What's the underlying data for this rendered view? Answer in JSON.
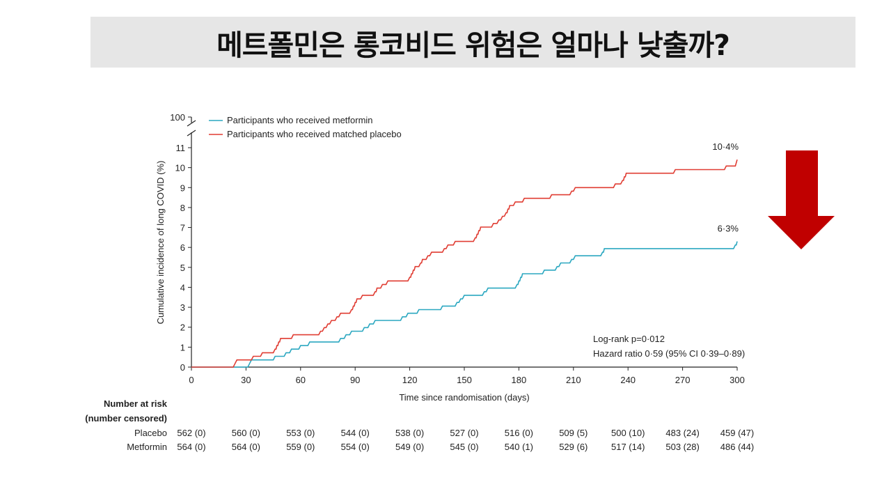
{
  "title": "메트폴민은 롱코비드 위험은 얼마나 낮출까?",
  "colors": {
    "metformin": "#2aa7c0",
    "placebo": "#e03c32",
    "arrow": "#c00000",
    "title_bg": "#e6e6e6"
  },
  "icons": {
    "arrow": "down-arrow-icon"
  },
  "chart_data": {
    "type": "line",
    "xlabel": "Time since randomisation (days)",
    "ylabel": "Cumulative incidence of long COVID (%)",
    "xlim": [
      0,
      300
    ],
    "ylim": [
      0,
      11
    ],
    "y_top_tick": "100",
    "x_ticks": [
      0,
      30,
      60,
      90,
      120,
      150,
      180,
      210,
      240,
      270,
      300
    ],
    "y_ticks": [
      0,
      1,
      2,
      3,
      4,
      5,
      6,
      7,
      8,
      9,
      10,
      11
    ],
    "grid": false,
    "legend": "top-left",
    "series": [
      {
        "name": "Participants who received metformin",
        "end_label": "6·3%",
        "steps": [
          [
            0,
            0
          ],
          [
            31,
            0
          ],
          [
            32,
            0.18
          ],
          [
            33,
            0.36
          ],
          [
            45,
            0.36
          ],
          [
            46,
            0.54
          ],
          [
            51,
            0.54
          ],
          [
            52,
            0.72
          ],
          [
            54,
            0.72
          ],
          [
            55,
            0.9
          ],
          [
            59,
            0.9
          ],
          [
            60,
            1.08
          ],
          [
            64,
            1.08
          ],
          [
            65,
            1.26
          ],
          [
            81,
            1.26
          ],
          [
            82,
            1.44
          ],
          [
            84,
            1.44
          ],
          [
            85,
            1.62
          ],
          [
            87,
            1.62
          ],
          [
            88,
            1.8
          ],
          [
            94,
            1.8
          ],
          [
            95,
            1.98
          ],
          [
            97,
            1.98
          ],
          [
            98,
            2.16
          ],
          [
            100,
            2.16
          ],
          [
            101,
            2.34
          ],
          [
            115,
            2.34
          ],
          [
            116,
            2.52
          ],
          [
            118,
            2.52
          ],
          [
            119,
            2.7
          ],
          [
            124,
            2.7
          ],
          [
            125,
            2.88
          ],
          [
            137,
            2.88
          ],
          [
            138,
            3.06
          ],
          [
            145,
            3.06
          ],
          [
            146,
            3.24
          ],
          [
            147,
            3.24
          ],
          [
            148,
            3.42
          ],
          [
            149,
            3.42
          ],
          [
            150,
            3.6
          ],
          [
            160,
            3.6
          ],
          [
            161,
            3.78
          ],
          [
            162,
            3.78
          ],
          [
            163,
            3.96
          ],
          [
            178,
            3.96
          ],
          [
            179,
            4.14
          ],
          [
            179.5,
            4.14
          ],
          [
            180,
            4.32
          ],
          [
            180.5,
            4.32
          ],
          [
            181,
            4.5
          ],
          [
            181.5,
            4.5
          ],
          [
            182,
            4.68
          ],
          [
            193,
            4.68
          ],
          [
            194,
            4.86
          ],
          [
            200,
            4.86
          ],
          [
            201,
            5.04
          ],
          [
            202,
            5.04
          ],
          [
            203,
            5.22
          ],
          [
            208,
            5.22
          ],
          [
            209,
            5.4
          ],
          [
            210,
            5.4
          ],
          [
            211,
            5.58
          ],
          [
            225,
            5.58
          ],
          [
            226,
            5.76
          ],
          [
            226.5,
            5.76
          ],
          [
            227,
            5.94
          ],
          [
            298,
            5.94
          ],
          [
            299,
            6.12
          ],
          [
            299.5,
            6.12
          ],
          [
            300,
            6.3
          ]
        ]
      },
      {
        "name": "Participants who received matched placebo",
        "end_label": "10·4%",
        "steps": [
          [
            0,
            0
          ],
          [
            23,
            0
          ],
          [
            24,
            0.18
          ],
          [
            25,
            0.36
          ],
          [
            33,
            0.36
          ],
          [
            34,
            0.54
          ],
          [
            38,
            0.54
          ],
          [
            39,
            0.72
          ],
          [
            45,
            0.72
          ],
          [
            46,
            0.9
          ],
          [
            46.5,
            0.9
          ],
          [
            47,
            1.08
          ],
          [
            47.5,
            1.08
          ],
          [
            48,
            1.26
          ],
          [
            48.5,
            1.26
          ],
          [
            49,
            1.44
          ],
          [
            55,
            1.44
          ],
          [
            56,
            1.62
          ],
          [
            70,
            1.62
          ],
          [
            71,
            1.8
          ],
          [
            72,
            1.8
          ],
          [
            73,
            1.98
          ],
          [
            74,
            1.98
          ],
          [
            75,
            2.16
          ],
          [
            76,
            2.16
          ],
          [
            77,
            2.34
          ],
          [
            79,
            2.34
          ],
          [
            80,
            2.52
          ],
          [
            81,
            2.52
          ],
          [
            82,
            2.7
          ],
          [
            87,
            2.7
          ],
          [
            88,
            2.88
          ],
          [
            88.5,
            2.88
          ],
          [
            89,
            3.06
          ],
          [
            89.5,
            3.06
          ],
          [
            90,
            3.24
          ],
          [
            90.5,
            3.24
          ],
          [
            91,
            3.42
          ],
          [
            93,
            3.42
          ],
          [
            94,
            3.6
          ],
          [
            100,
            3.6
          ],
          [
            101,
            3.78
          ],
          [
            101.5,
            3.78
          ],
          [
            102,
            3.96
          ],
          [
            104,
            3.96
          ],
          [
            105,
            4.14
          ],
          [
            107,
            4.14
          ],
          [
            108,
            4.32
          ],
          [
            119,
            4.32
          ],
          [
            120,
            4.5
          ],
          [
            120.5,
            4.5
          ],
          [
            121,
            4.68
          ],
          [
            121.5,
            4.68
          ],
          [
            122,
            4.86
          ],
          [
            122.5,
            4.86
          ],
          [
            123,
            5.04
          ],
          [
            125,
            5.04
          ],
          [
            126,
            5.22
          ],
          [
            126.5,
            5.22
          ],
          [
            127,
            5.4
          ],
          [
            129,
            5.4
          ],
          [
            130,
            5.58
          ],
          [
            131,
            5.58
          ],
          [
            132,
            5.76
          ],
          [
            138,
            5.76
          ],
          [
            139,
            5.94
          ],
          [
            140,
            5.94
          ],
          [
            141,
            6.12
          ],
          [
            144,
            6.12
          ],
          [
            145,
            6.3
          ],
          [
            155,
            6.3
          ],
          [
            156,
            6.48
          ],
          [
            156.5,
            6.48
          ],
          [
            157,
            6.66
          ],
          [
            157.5,
            6.66
          ],
          [
            158,
            6.84
          ],
          [
            158.5,
            6.84
          ],
          [
            159,
            7.02
          ],
          [
            165,
            7.02
          ],
          [
            166,
            7.2
          ],
          [
            168,
            7.2
          ],
          [
            169,
            7.38
          ],
          [
            170,
            7.38
          ],
          [
            171,
            7.56
          ],
          [
            172,
            7.56
          ],
          [
            173,
            7.74
          ],
          [
            173.5,
            7.74
          ],
          [
            174,
            7.92
          ],
          [
            174.5,
            7.92
          ],
          [
            175,
            8.1
          ],
          [
            177,
            8.1
          ],
          [
            178,
            8.28
          ],
          [
            182,
            8.28
          ],
          [
            183,
            8.46
          ],
          [
            197,
            8.46
          ],
          [
            198,
            8.64
          ],
          [
            208,
            8.64
          ],
          [
            209,
            8.82
          ],
          [
            210,
            8.82
          ],
          [
            211,
            9.0
          ],
          [
            232,
            9.0
          ],
          [
            233,
            9.18
          ],
          [
            236,
            9.18
          ],
          [
            237,
            9.36
          ],
          [
            237.5,
            9.36
          ],
          [
            238,
            9.54
          ],
          [
            238.5,
            9.54
          ],
          [
            239,
            9.72
          ],
          [
            265,
            9.72
          ],
          [
            266,
            9.9
          ],
          [
            293,
            9.9
          ],
          [
            294,
            10.08
          ],
          [
            299,
            10.08
          ],
          [
            300,
            10.4
          ]
        ]
      }
    ],
    "annotations": [
      "Log-rank p=0·012",
      "Hazard ratio 0·59 (95% CI 0·39–0·89)"
    ],
    "risk_table": {
      "header": [
        "Number at risk",
        "(number censored)"
      ],
      "rows": [
        {
          "label": "Placebo",
          "values": [
            "562 (0)",
            "560 (0)",
            "553 (0)",
            "544 (0)",
            "538 (0)",
            "527 (0)",
            "516 (0)",
            "509 (5)",
            "500 (10)",
            "483 (24)",
            "459 (47)"
          ]
        },
        {
          "label": "Metformin",
          "values": [
            "564 (0)",
            "564 (0)",
            "559 (0)",
            "554 (0)",
            "549 (0)",
            "545 (0)",
            "540 (1)",
            "529 (6)",
            "517 (14)",
            "503 (28)",
            "486 (44)"
          ]
        }
      ]
    }
  }
}
